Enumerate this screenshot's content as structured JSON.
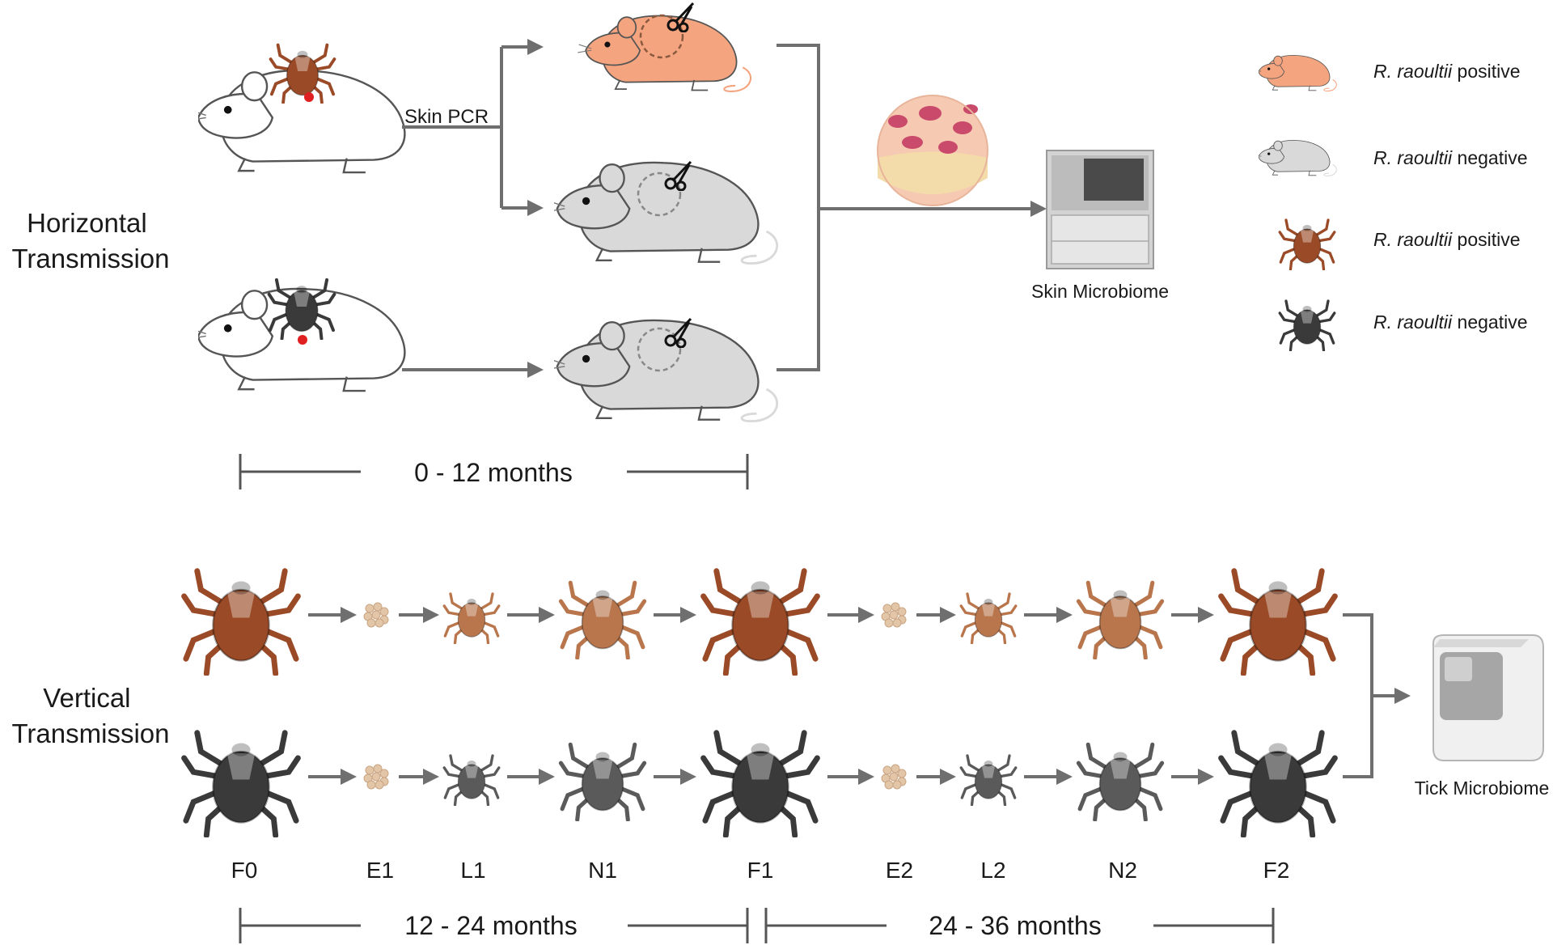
{
  "horizontal": {
    "title_line1": "Horizontal",
    "title_line2": "Transmission",
    "skin_pcr": "Skin PCR",
    "skin_microbiome": "Skin Microbiome",
    "timeline": "0 - 12 months"
  },
  "vertical": {
    "title_line1": "Vertical",
    "title_line2": "Transmission",
    "tick_microbiome": "Tick Microbiome",
    "stages": [
      "F0",
      "E1",
      "L1",
      "N1",
      "F1",
      "E2",
      "L2",
      "N2",
      "F2"
    ],
    "timeline_1": "12 - 24 months",
    "timeline_2": "24 - 36 months"
  },
  "legend": {
    "mouse_positive_species": "R. raoultii",
    "mouse_positive_status": " positive",
    "mouse_negative_species": "R. raoultii",
    "mouse_negative_status": " negative",
    "tick_positive_species": "R. raoultii",
    "tick_positive_status": " positive",
    "tick_negative_species": "R. raoultii",
    "tick_negative_status": " negative"
  },
  "colors": {
    "positive_mouse": "#f4a47e",
    "negative_mouse": "#d9d9d9",
    "positive_tick": "#9a4a26",
    "negative_tick": "#3a3a3a",
    "arrow": "#6f6f6f"
  }
}
